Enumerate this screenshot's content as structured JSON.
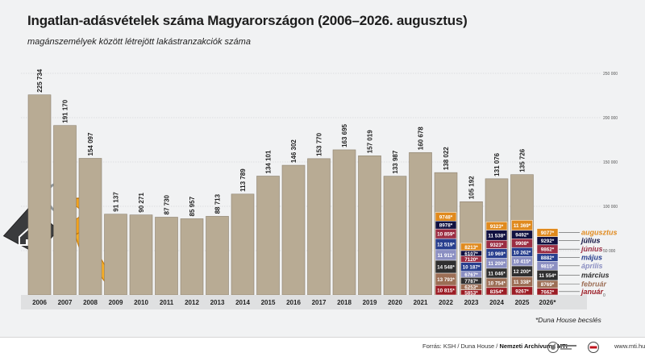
{
  "title": "Ingatlan-adásvételek száma Magyarországon (2006–2026. augusztus)",
  "subtitle": "magánszemélyek között létrejött lakástranzakciók száma",
  "note": "*Duna House becslés",
  "source": {
    "prefix": "Forrás: KSH / Duna House / ",
    "archive": "Nemzeti Archívum / MTI",
    "url": "www.mti.hu"
  },
  "colors": {
    "bar": "#b8ab94",
    "bar_stroke": "#8d8270",
    "axis_text": "#222222",
    "background": "#f1f2f3"
  },
  "chart_data": {
    "type": "bar",
    "ylim": [
      0,
      250000
    ],
    "yticks": [
      "250 000",
      "200 000",
      "150 000",
      "100 000",
      "50 000",
      "0"
    ],
    "ytick_values": [
      250000,
      200000,
      150000,
      100000,
      50000,
      0
    ],
    "categories": [
      "2006",
      "2007",
      "2008",
      "2009",
      "2010",
      "2011",
      "2012",
      "2013",
      "2014",
      "2015",
      "2016",
      "2017",
      "2018",
      "2019",
      "2020",
      "2021",
      "2022",
      "2023",
      "2024",
      "2025",
      "2026*"
    ],
    "totals": [
      225734,
      191170,
      154097,
      91137,
      90271,
      87730,
      85957,
      88713,
      113789,
      134101,
      146302,
      153770,
      163695,
      157019,
      133987,
      160678,
      138022,
      105192,
      131076,
      135726,
      null
    ],
    "total_labels": [
      "225 734",
      "191 170",
      "154 097",
      "91 137",
      "90 271",
      "87 730",
      "85 957",
      "88 713",
      "113 789",
      "134 101",
      "146 302",
      "153 770",
      "163 695",
      "157 019",
      "133 987",
      "160 678",
      "138 022",
      "105 192",
      "131 076",
      "135 726",
      ""
    ],
    "monthly": {
      "months": [
        "január",
        "február",
        "március",
        "április",
        "május",
        "június",
        "július",
        "augusztus"
      ],
      "colors": [
        "#9b1c24",
        "#9c6e55",
        "#2f2f2f",
        "#8b8fc2",
        "#283f8e",
        "#9b2d43",
        "#101040",
        "#e08a1e"
      ],
      "years": [
        {
          "category": "2022",
          "values": [
            10815,
            13793,
            14548,
            11911,
            12519,
            10859,
            8978,
            9748
          ],
          "labels": [
            "10 815*",
            "13 793*",
            "14 548*",
            "11 911*",
            "12 519*",
            "10 859*",
            "8978*",
            "9748*"
          ]
        },
        {
          "category": "2023",
          "values": [
            5853,
            6253,
            7787,
            6767,
            10187,
            7120,
            6107,
            8213
          ],
          "labels": [
            "5853*",
            "6253*",
            "7787*",
            "6767*",
            "10 187*",
            "7120*",
            "6107*",
            "8213*"
          ]
        },
        {
          "category": "2024",
          "values": [
            8354,
            10754,
            11046,
            11200,
            10969,
            9323,
            11538,
            9323
          ],
          "labels": [
            "8354*",
            "10 754*",
            "11 046*",
            "11 200*",
            "10 969*",
            "9323*",
            "11 538*",
            "9323*"
          ]
        },
        {
          "category": "2025",
          "values": [
            9267,
            11338,
            12200,
            10415,
            10262,
            9908,
            9492,
            11369
          ],
          "labels": [
            "9267*",
            "11 338*",
            "12 200*",
            "10 415*",
            "10 262*",
            "9908*",
            "9492*",
            "11 369*"
          ]
        },
        {
          "category": "2026*",
          "values": [
            7662,
            8769,
            11554,
            9815,
            8882,
            9862,
            9292,
            9077
          ],
          "labels": [
            "7662*",
            "8769*",
            "11 554*",
            "9815*",
            "8882*",
            "9862*",
            "9292*",
            "9077*"
          ]
        }
      ]
    }
  }
}
